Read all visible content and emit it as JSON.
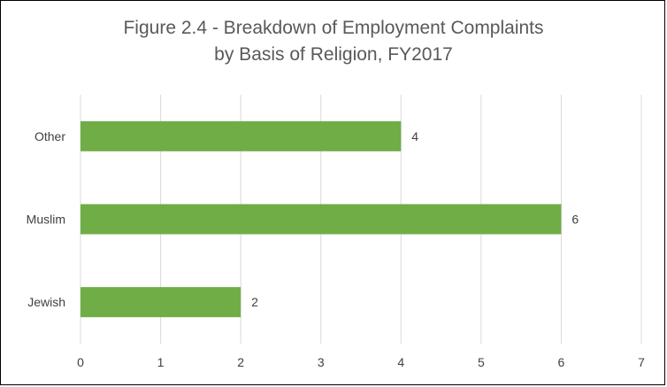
{
  "chart_data": {
    "type": "bar",
    "orientation": "horizontal",
    "title_lines": [
      "Figure 2.4 - Breakdown of Employment Complaints",
      "by Basis of Religion, FY2017"
    ],
    "categories": [
      "Other",
      "Muslim",
      "Jewish"
    ],
    "values": [
      4,
      6,
      2
    ],
    "data_labels": [
      "4",
      "6",
      "2"
    ],
    "xlim": [
      0,
      7
    ],
    "x_ticks": [
      "0",
      "1",
      "2",
      "3",
      "4",
      "5",
      "6",
      "7"
    ],
    "xlabel": "",
    "ylabel": "",
    "grid": true,
    "legend": "none",
    "bar_color": "#70AD47"
  }
}
